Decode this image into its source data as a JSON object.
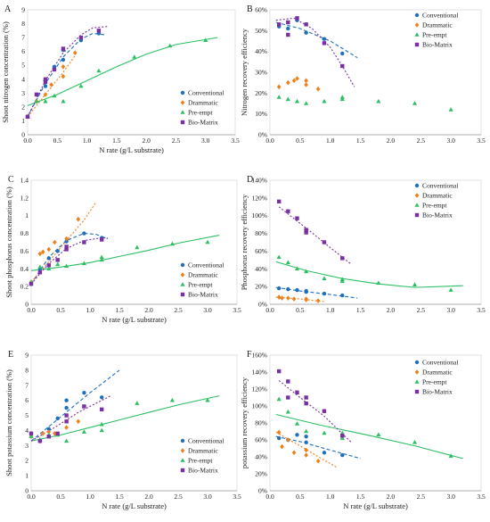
{
  "series_styles": [
    {
      "name": "Conventional",
      "color": "#1f6fbf",
      "marker": "circle"
    },
    {
      "name": "Drammatic",
      "color": "#f07f1a",
      "marker": "diamond"
    },
    {
      "name": "Pre-empt",
      "color": "#2cbf63",
      "marker": "triangle"
    },
    {
      "name": "Bio-Matrix",
      "color": "#7b2fa5",
      "marker": "square"
    }
  ],
  "chart_data": [
    {
      "panel": "A",
      "type": "scatter",
      "xlabel": "N rate (g/L substrate)",
      "ylabel": "Shoot nitrogen concentration (%)",
      "xlim": [
        0,
        3.5
      ],
      "ylim": [
        0,
        9
      ],
      "xticks": [
        "0.0",
        "0.5",
        "1.0",
        "1.5",
        "2.0",
        "2.5",
        "3.0",
        "3.5"
      ],
      "yticks": [
        "0",
        "1",
        "2",
        "3",
        "4",
        "5",
        "6",
        "7",
        "8",
        "9"
      ],
      "legend": "right",
      "series": [
        {
          "name": "Conventional",
          "x": [
            0,
            0.15,
            0.3,
            0.3,
            0.45,
            0.6,
            0.6,
            0.9,
            1.2
          ],
          "y": [
            1.3,
            2.9,
            3.5,
            3.9,
            4.9,
            5.4,
            6.1,
            6.8,
            7.3
          ]
        },
        {
          "name": "Drammatic",
          "x": [
            0,
            0.15,
            0.3,
            0.4,
            0.6,
            0.6,
            0.8
          ],
          "y": [
            1.3,
            2.4,
            2.9,
            3.6,
            4.2,
            4.9,
            5.9
          ]
        },
        {
          "name": "Pre-empt",
          "x": [
            0,
            0.15,
            0.3,
            0.45,
            0.6,
            0.9,
            1.2,
            1.8,
            2.4,
            3.0
          ],
          "y": [
            1.3,
            2.4,
            2.4,
            2.8,
            2.4,
            3.5,
            4.6,
            5.6,
            6.4,
            6.8
          ]
        },
        {
          "name": "Bio-Matrix",
          "x": [
            0,
            0.15,
            0.3,
            0.3,
            0.45,
            0.6,
            0.9,
            1.2
          ],
          "y": [
            1.3,
            2.9,
            3.8,
            4.0,
            4.7,
            6.2,
            7.0,
            7.5
          ]
        }
      ],
      "trends": [
        {
          "name": "Conventional",
          "x": [
            0,
            0.3,
            0.6,
            0.9,
            1.1,
            1.3
          ],
          "y": [
            1.3,
            3.7,
            5.6,
            6.9,
            7.3,
            7.2
          ]
        },
        {
          "name": "Drammatic",
          "x": [
            0,
            0.3,
            0.6,
            0.8
          ],
          "y": [
            1.3,
            2.9,
            4.5,
            5.7
          ]
        },
        {
          "name": "Pre-empt",
          "x": [
            0,
            0.5,
            1.0,
            1.5,
            2.0,
            2.5,
            3.2
          ],
          "y": [
            2.1,
            2.9,
            3.9,
            4.9,
            5.8,
            6.5,
            7.0
          ]
        },
        {
          "name": "Bio-Matrix",
          "x": [
            0,
            0.3,
            0.6,
            0.9,
            1.1,
            1.35
          ],
          "y": [
            1.3,
            3.9,
            5.9,
            7.2,
            7.7,
            7.8
          ]
        }
      ]
    },
    {
      "panel": "B",
      "type": "scatter",
      "xlabel": "",
      "ylabel": "Nitrogen recovery efficiency",
      "xlim": [
        0,
        3.5
      ],
      "ylim": [
        0,
        60
      ],
      "xticks": [
        "0.0",
        "0.5",
        "1.0",
        "1.5",
        "2.0",
        "2.5",
        "3.0",
        "3.5"
      ],
      "yticks": [
        "0%",
        "10%",
        "20%",
        "30%",
        "40%",
        "50%",
        "60%"
      ],
      "legend": "top-right",
      "series": [
        {
          "name": "Conventional",
          "x": [
            0.15,
            0.3,
            0.45,
            0.6,
            0.9,
            1.2
          ],
          "y": [
            52,
            51,
            55,
            49,
            46,
            39
          ]
        },
        {
          "name": "Drammatic",
          "x": [
            0.15,
            0.3,
            0.4,
            0.45,
            0.6,
            0.6,
            0.8
          ],
          "y": [
            23,
            25,
            26,
            27,
            26,
            24,
            22
          ]
        },
        {
          "name": "Pre-empt",
          "x": [
            0.15,
            0.3,
            0.45,
            0.6,
            0.9,
            1.2,
            1.2,
            1.8,
            2.4,
            3.0
          ],
          "y": [
            18,
            17,
            16,
            15,
            16,
            17,
            18,
            16,
            15,
            12
          ]
        },
        {
          "name": "Bio-Matrix",
          "x": [
            0.15,
            0.3,
            0.3,
            0.45,
            0.6,
            0.9,
            1.2
          ],
          "y": [
            53,
            48,
            54,
            56,
            53,
            44,
            33
          ]
        }
      ],
      "trends": [
        {
          "name": "Conventional",
          "x": [
            0.1,
            0.5,
            1.0,
            1.45
          ],
          "y": [
            54,
            51,
            45,
            37
          ]
        },
        {
          "name": "Bio-Matrix",
          "x": [
            0.1,
            0.4,
            0.7,
            1.0,
            1.2,
            1.4
          ],
          "y": [
            55,
            56,
            51,
            42,
            33,
            23
          ]
        }
      ]
    },
    {
      "panel": "C",
      "type": "scatter",
      "xlabel": "N rate (g/L substrate)",
      "ylabel": "Shoot phosphorus concentration (%)",
      "xlim": [
        0,
        3.5
      ],
      "ylim": [
        0,
        1.4
      ],
      "xticks": [
        "0.0",
        "0.5",
        "1.0",
        "1.5",
        "2.0",
        "2.5",
        "3.0",
        "3.5"
      ],
      "yticks": [
        "0",
        "0.2",
        "0.4",
        "0.6",
        "0.8",
        "1",
        "1.2",
        "1.4"
      ],
      "legend": "right",
      "series": [
        {
          "name": "Conventional",
          "x": [
            0,
            0.15,
            0.3,
            0.45,
            0.6,
            0.9,
            1.2
          ],
          "y": [
            0.23,
            0.4,
            0.52,
            0.6,
            0.71,
            0.8,
            0.75
          ]
        },
        {
          "name": "Drammatic",
          "x": [
            0,
            0.15,
            0.2,
            0.3,
            0.4,
            0.6,
            0.8
          ],
          "y": [
            0.25,
            0.57,
            0.59,
            0.62,
            0.7,
            0.74,
            0.96
          ]
        },
        {
          "name": "Pre-empt",
          "x": [
            0,
            0.15,
            0.3,
            0.45,
            0.6,
            0.9,
            1.2,
            1.2,
            1.8,
            2.4,
            3.0
          ],
          "y": [
            0.25,
            0.42,
            0.4,
            0.45,
            0.43,
            0.46,
            0.5,
            0.53,
            0.64,
            0.68,
            0.7
          ]
        },
        {
          "name": "Bio-Matrix",
          "x": [
            0,
            0.15,
            0.3,
            0.45,
            0.6,
            0.6,
            0.9,
            1.2
          ],
          "y": [
            0.23,
            0.36,
            0.44,
            0.5,
            0.62,
            0.65,
            0.7,
            0.73
          ]
        }
      ],
      "trends": [
        {
          "name": "Conventional",
          "x": [
            0,
            0.3,
            0.6,
            0.9,
            1.1,
            1.3
          ],
          "y": [
            0.23,
            0.53,
            0.72,
            0.8,
            0.79,
            0.74
          ]
        },
        {
          "name": "Drammatic",
          "x": [
            0,
            0.3,
            0.6,
            0.9,
            1.1
          ],
          "y": [
            0.25,
            0.48,
            0.72,
            0.95,
            1.15
          ]
        },
        {
          "name": "Pre-empt",
          "x": [
            0,
            0.5,
            1.0,
            1.5,
            2.0,
            2.5,
            3.2
          ],
          "y": [
            0.38,
            0.42,
            0.47,
            0.54,
            0.61,
            0.69,
            0.78
          ]
        },
        {
          "name": "Bio-Matrix",
          "x": [
            0,
            0.3,
            0.6,
            0.9,
            1.2,
            1.3
          ],
          "y": [
            0.23,
            0.46,
            0.63,
            0.72,
            0.75,
            0.75
          ]
        }
      ]
    },
    {
      "panel": "D",
      "type": "scatter",
      "xlabel": "",
      "ylabel": "Phosphorus recovery efficiency",
      "xlim": [
        0,
        3.5
      ],
      "ylim": [
        0,
        140
      ],
      "xticks": [
        "0.0",
        "0.5",
        "1.0",
        "1.5",
        "2.0",
        "2.5",
        "3.0",
        "3.5"
      ],
      "yticks": [
        "0%",
        "20%",
        "40%",
        "60%",
        "80%",
        "100%",
        "120%",
        "140%"
      ],
      "legend": "top-right",
      "series": [
        {
          "name": "Conventional",
          "x": [
            0.15,
            0.3,
            0.45,
            0.6,
            0.6,
            0.9,
            1.2
          ],
          "y": [
            18,
            17,
            16,
            15,
            14,
            12,
            10
          ]
        },
        {
          "name": "Drammatic",
          "x": [
            0.15,
            0.2,
            0.3,
            0.4,
            0.6,
            0.6,
            0.8
          ],
          "y": [
            8,
            7,
            7,
            6,
            6,
            5,
            4
          ]
        },
        {
          "name": "Pre-empt",
          "x": [
            0.15,
            0.3,
            0.45,
            0.6,
            0.9,
            1.2,
            1.2,
            1.8,
            2.4,
            3.0
          ],
          "y": [
            53,
            47,
            40,
            37,
            29,
            28,
            26,
            24,
            22,
            16
          ]
        },
        {
          "name": "Bio-Matrix",
          "x": [
            0.15,
            0.3,
            0.45,
            0.6,
            0.6,
            0.9,
            1.2
          ],
          "y": [
            116,
            105,
            97,
            84,
            81,
            70,
            52
          ]
        }
      ],
      "trends": [
        {
          "name": "Conventional",
          "x": [
            0.1,
            0.5,
            1.0,
            1.45
          ],
          "y": [
            19,
            15,
            11,
            7
          ]
        },
        {
          "name": "Drammatic",
          "x": [
            0.1,
            0.5,
            0.9
          ],
          "y": [
            8,
            6,
            3
          ]
        },
        {
          "name": "Pre-empt",
          "x": [
            0.1,
            0.6,
            1.2,
            1.8,
            2.4,
            3.2
          ],
          "y": [
            48,
            38,
            29,
            23,
            19,
            21
          ]
        },
        {
          "name": "Bio-Matrix",
          "x": [
            0.15,
            0.6,
            1.0,
            1.35
          ],
          "y": [
            110,
            86,
            64,
            45
          ]
        }
      ]
    },
    {
      "panel": "E",
      "type": "scatter",
      "xlabel": "N rate (g/L substrate)",
      "ylabel": "Shoot potassium concentration (%)",
      "xlim": [
        0,
        3.5
      ],
      "ylim": [
        0,
        9
      ],
      "xticks": [
        "0.0",
        "0.5",
        "1.0",
        "1.5",
        "2.0",
        "2.5",
        "3.0",
        "3.5"
      ],
      "yticks": [
        "0",
        "1",
        "2",
        "3",
        "4",
        "5",
        "6",
        "7",
        "8",
        "9"
      ],
      "legend": "right",
      "series": [
        {
          "name": "Conventional",
          "x": [
            0,
            0.15,
            0.3,
            0.45,
            0.6,
            0.6,
            0.9,
            1.2
          ],
          "y": [
            3.8,
            3.3,
            4.1,
            4.8,
            5.5,
            6.0,
            6.5,
            6.2
          ]
        },
        {
          "name": "Drammatic",
          "x": [
            0,
            0.15,
            0.2,
            0.3,
            0.4,
            0.6,
            0.8
          ],
          "y": [
            3.6,
            3.3,
            3.8,
            3.9,
            3.8,
            4.2,
            4.6
          ]
        },
        {
          "name": "Pre-empt",
          "x": [
            0,
            0.15,
            0.3,
            0.45,
            0.6,
            0.9,
            1.2,
            1.2,
            1.8,
            2.4,
            3.0
          ],
          "y": [
            3.6,
            3.4,
            3.7,
            3.7,
            3.3,
            3.9,
            4.0,
            4.4,
            5.8,
            6.0,
            6.0
          ]
        },
        {
          "name": "Bio-Matrix",
          "x": [
            0,
            0.15,
            0.3,
            0.45,
            0.6,
            0.6,
            0.9,
            1.2
          ],
          "y": [
            3.8,
            3.3,
            3.6,
            3.8,
            4.6,
            5.0,
            5.6,
            5.4
          ]
        }
      ],
      "trends": [
        {
          "name": "Conventional",
          "x": [
            0,
            0.5,
            1.0,
            1.5
          ],
          "y": [
            3.3,
            4.9,
            6.5,
            8.0
          ]
        },
        {
          "name": "Pre-empt",
          "x": [
            0,
            0.5,
            1.0,
            1.5,
            2.0,
            2.5,
            3.2
          ],
          "y": [
            3.3,
            3.7,
            4.2,
            4.7,
            5.2,
            5.7,
            6.3
          ]
        },
        {
          "name": "Bio-Matrix",
          "x": [
            0,
            0.4,
            0.8,
            1.35
          ],
          "y": [
            3.3,
            4.2,
            5.2,
            6.3
          ]
        }
      ]
    },
    {
      "panel": "F",
      "type": "scatter",
      "xlabel": "N rate (g/L substrate)",
      "ylabel": "potassium recovery efficiency",
      "xlim": [
        0,
        3.5
      ],
      "ylim": [
        0,
        160
      ],
      "xticks": [
        "0.0",
        "0.5",
        "1.0",
        "1.5",
        "2.0",
        "2.5",
        "3.0",
        "3.5"
      ],
      "yticks": [
        "0%",
        "20%",
        "40%",
        "60%",
        "80%",
        "100%",
        "120%",
        "140%",
        "160%"
      ],
      "legend": "top-right",
      "series": [
        {
          "name": "Conventional",
          "x": [
            0.15,
            0.3,
            0.45,
            0.6,
            0.6,
            0.9,
            1.2
          ],
          "y": [
            62,
            60,
            66,
            64,
            57,
            45,
            42
          ]
        },
        {
          "name": "Drammatic",
          "x": [
            0.15,
            0.2,
            0.3,
            0.4,
            0.6,
            0.6,
            0.8
          ],
          "y": [
            69,
            52,
            60,
            45,
            48,
            42,
            35
          ]
        },
        {
          "name": "Pre-empt",
          "x": [
            0.15,
            0.3,
            0.45,
            0.6,
            0.9,
            1.2,
            1.2,
            1.8,
            2.4,
            3.0
          ],
          "y": [
            108,
            93,
            79,
            70,
            68,
            68,
            62,
            66,
            57,
            41
          ]
        },
        {
          "name": "Bio-Matrix",
          "x": [
            0.15,
            0.3,
            0.3,
            0.45,
            0.6,
            0.6,
            0.9,
            1.2
          ],
          "y": [
            141,
            129,
            110,
            116,
            110,
            103,
            94,
            65
          ]
        }
      ],
      "trends": [
        {
          "name": "Conventional",
          "x": [
            0.1,
            0.5,
            1.0,
            1.5
          ],
          "y": [
            64,
            58,
            48,
            38
          ]
        },
        {
          "name": "Drammatic",
          "x": [
            0.1,
            0.5,
            0.9,
            1.1
          ],
          "y": [
            69,
            53,
            36,
            28
          ]
        },
        {
          "name": "Pre-empt",
          "x": [
            0.1,
            0.8,
            1.6,
            2.4,
            3.2
          ],
          "y": [
            90,
            78,
            66,
            53,
            38
          ]
        },
        {
          "name": "Bio-Matrix",
          "x": [
            0.15,
            0.5,
            0.9,
            1.35
          ],
          "y": [
            130,
            110,
            88,
            57
          ]
        }
      ]
    }
  ]
}
